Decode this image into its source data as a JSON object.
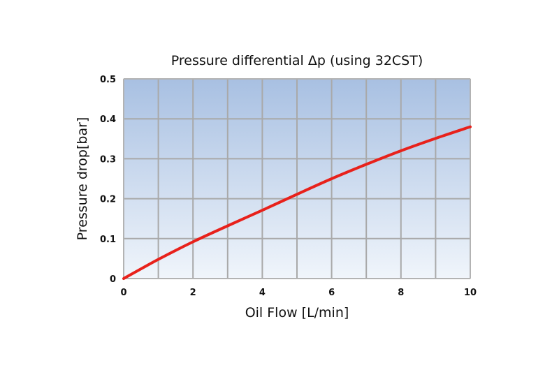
{
  "chart_data": {
    "type": "line",
    "title": "Pressure differential Δp (using 32CST)",
    "xlabel": "Oil Flow [L/min]",
    "ylabel": "Pressure drop[bar]",
    "xlim": [
      0,
      10
    ],
    "ylim": [
      0,
      0.5
    ],
    "xticks": [
      0,
      2,
      4,
      6,
      8,
      10
    ],
    "yticks": [
      0,
      0.1,
      0.2,
      0.3,
      0.4,
      0.5
    ],
    "xtick_labels": [
      "0",
      "2",
      "4",
      "6",
      "8",
      "10"
    ],
    "ytick_labels": [
      "0",
      "0.1",
      "0.2",
      "0.3",
      "0.4",
      "0.5"
    ],
    "grid": true,
    "legend": "none",
    "series": [
      {
        "color": "#e8211b",
        "x": [
          0,
          1,
          2,
          3,
          4,
          5,
          6,
          7,
          8,
          9,
          10
        ],
        "y": [
          0,
          0.048,
          0.092,
          0.132,
          0.171,
          0.211,
          0.25,
          0.286,
          0.32,
          0.351,
          0.38
        ]
      }
    ]
  },
  "colors": {
    "plot_gradient_top": "#a8c0e2",
    "plot_gradient_bottom": "#f0f5fb",
    "grid": "#a9a9a9",
    "line": "#e8211b"
  }
}
